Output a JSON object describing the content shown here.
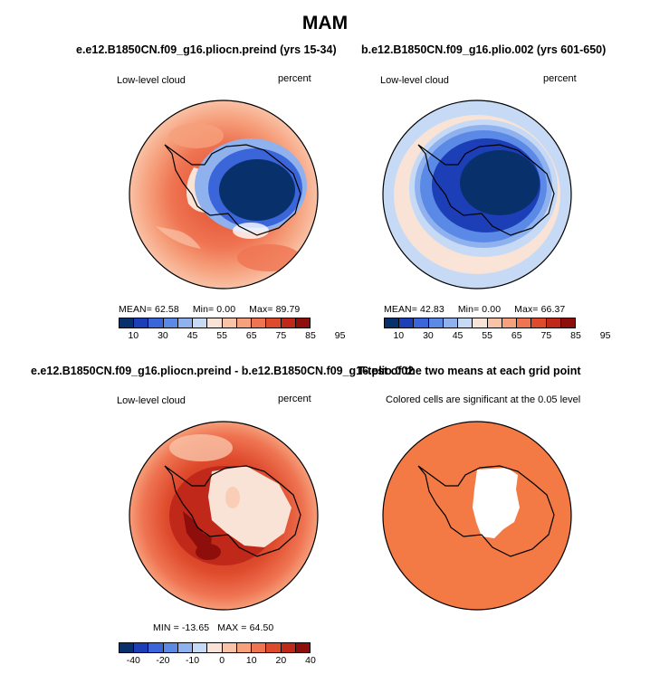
{
  "figure": {
    "title": "MAM"
  },
  "chart_data": [
    {
      "type": "heatmap",
      "title": "e.e12.B1850CN.f09_g16.pliocn.preind (yrs 15-34)",
      "left_label": "Low-level cloud",
      "right_label": "percent",
      "stats": {
        "mean_label": "MEAN=",
        "mean": "62.58",
        "min_label": "Min=",
        "min": "0.00",
        "max_label": "Max=",
        "max": "89.79"
      },
      "colorbar": {
        "colors": [
          "#08306b",
          "#1c3fb8",
          "#3b66d9",
          "#5b8ae6",
          "#8fb2ef",
          "#c6daf6",
          "#f9e3d7",
          "#f9c3a8",
          "#f6a07c",
          "#ef7452",
          "#de4a2c",
          "#c0281a",
          "#8e0e0b"
        ],
        "tick_labels": [
          "10",
          "30",
          "45",
          "55",
          "65",
          "75",
          "85",
          "95"
        ]
      }
    },
    {
      "type": "heatmap",
      "title": "b.e12.B1850CN.f09_g16.plio.002 (yrs 601-650)",
      "left_label": "Low-level cloud",
      "right_label": "percent",
      "stats": {
        "mean_label": "MEAN=",
        "mean": "42.83",
        "min_label": "Min=",
        "min": "0.00",
        "max_label": "Max=",
        "max": "66.37"
      },
      "colorbar": {
        "colors": [
          "#08306b",
          "#1c3fb8",
          "#3b66d9",
          "#5b8ae6",
          "#8fb2ef",
          "#c6daf6",
          "#f9e3d7",
          "#f9c3a8",
          "#f6a07c",
          "#ef7452",
          "#de4a2c",
          "#c0281a",
          "#8e0e0b"
        ],
        "tick_labels": [
          "10",
          "30",
          "45",
          "55",
          "65",
          "75",
          "85",
          "95"
        ]
      }
    },
    {
      "type": "heatmap",
      "title": "e.e12.B1850CN.f09_g16.pliocn.preind - b.e12.B1850CN.f09_g16.plio.002",
      "left_label": "Low-level cloud",
      "right_label": "percent",
      "stats": {
        "min_label": "MIN =",
        "min": "-13.65",
        "max_label": "MAX =",
        "max": "64.50"
      },
      "colorbar": {
        "colors": [
          "#08306b",
          "#1c3fb8",
          "#3b66d9",
          "#5b8ae6",
          "#8fb2ef",
          "#c6daf6",
          "#f9e3d7",
          "#f9c3a8",
          "#f6a07c",
          "#ef7452",
          "#de4a2c",
          "#c0281a",
          "#8e0e0b"
        ],
        "tick_labels": [
          "-40",
          "-20",
          "-10",
          "0",
          "10",
          "20",
          "40"
        ]
      }
    },
    {
      "type": "heatmap",
      "title": "T-test of the two means at each grid point",
      "subtitle": "Colored cells are significant at the 0.05 level",
      "significant_color": "#f47a45",
      "not_significant_color": "#ffffff"
    }
  ]
}
